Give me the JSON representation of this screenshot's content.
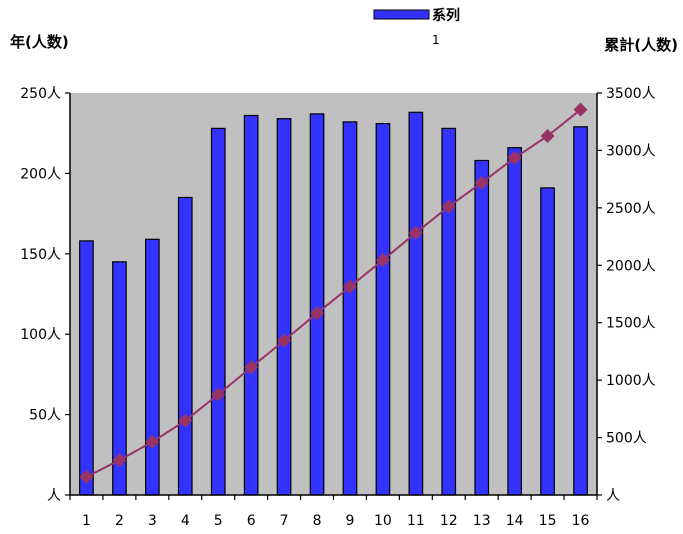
{
  "chart_data": {
    "type": "bar+line",
    "left_axis_title": "年(人数)",
    "right_axis_title": "累計(人数)",
    "legend": {
      "label_line1": "系列",
      "label_line2": "1",
      "placement": "top-center",
      "swatch_color": "#3333ff"
    },
    "categories": [
      "1",
      "2",
      "3",
      "4",
      "5",
      "6",
      "7",
      "8",
      "9",
      "10",
      "11",
      "12",
      "13",
      "14",
      "15",
      "16"
    ],
    "series": [
      {
        "type": "bar",
        "axis": "left",
        "color": "#3333ff",
        "values": [
          158,
          145,
          159,
          185,
          228,
          236,
          234,
          237,
          232,
          231,
          238,
          228,
          208,
          216,
          191,
          229
        ]
      },
      {
        "type": "line",
        "axis": "right",
        "color": "#993366",
        "marker": "diamond",
        "values": [
          158,
          303,
          462,
          647,
          875,
          1111,
          1345,
          1582,
          1814,
          2045,
          2283,
          2511,
          2719,
          2935,
          3126,
          3355
        ]
      }
    ],
    "left_axis": {
      "min": 0,
      "max": 250,
      "ticks": [
        0,
        50,
        100,
        150,
        200,
        250
      ],
      "tick_labels": [
        "人",
        "50人",
        "100人",
        "150人",
        "200人",
        "250人"
      ]
    },
    "right_axis": {
      "min": 0,
      "max": 3500,
      "ticks": [
        0,
        500,
        1000,
        1500,
        2000,
        2500,
        3000,
        3500
      ],
      "tick_labels": [
        "人",
        "500人",
        "1000人",
        "1500人",
        "2000人",
        "2500人",
        "3000人",
        "3500人"
      ]
    },
    "plot_background": "#c0c0c0",
    "grid": false
  }
}
